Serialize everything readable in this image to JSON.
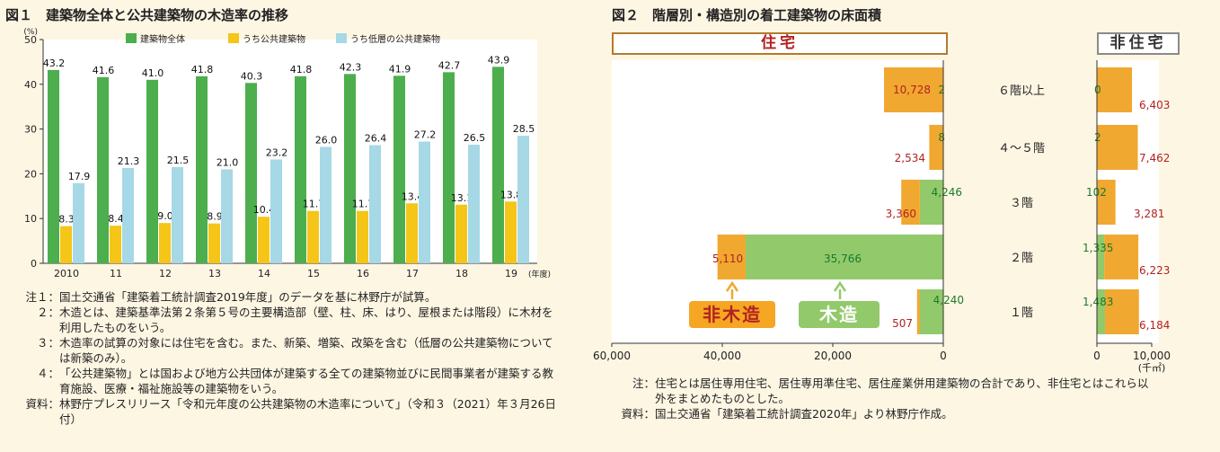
{
  "fig1": {
    "title": "図１　建築物全体と公共建築物の木造率の推移",
    "notes": [
      {
        "label": "注１：",
        "text": "国土交通省「建築着工統計調査2019年度」のデータを基に林野庁が試算。"
      },
      {
        "label": "２：",
        "text": "木造とは、建築基準法第２条第５号の主要構造部（壁、柱、床、はり、屋根または階段）に木材を利用したものをいう。"
      },
      {
        "label": "３：",
        "text": "木造率の試算の対象には住宅を含む。また、新築、増築、改築を含む（低層の公共建築物については新築のみ）。"
      },
      {
        "label": "４：",
        "text": "「公共建築物」とは国および地方公共団体が建築する全ての建築物並びに民間事業者が建築する教育施設、医療・福祉施設等の建築物をいう。"
      },
      {
        "label": "資料：",
        "text": "林野庁プレスリリース「令和元年度の公共建築物の木造率について」（令和３（2021）年３月26日付）"
      }
    ]
  },
  "fig2": {
    "title": "図２　階層別・構造別の着工建築物の床面積",
    "housing_label": "住宅",
    "nonhousing_label": "非住宅",
    "nonwood_label": "非木造",
    "wood_label": "木造",
    "notes": [
      {
        "label": "注：",
        "text": "住宅とは居住専用住宅、居住専用準住宅、居住産業併用建築物の合計であり、非住宅とはこれら以外をまとめたものとした。"
      },
      {
        "label": "資料：",
        "text": "国土交通省「建築着工統計調査2020年」より林野庁作成。"
      }
    ]
  },
  "chart_data": [
    {
      "type": "bar",
      "title": "建築物全体と公共建築物の木造率の推移",
      "ylabel": "(%)",
      "xlabel": "(年度)",
      "ylim": [
        0,
        50
      ],
      "yticks": [
        0,
        10,
        20,
        30,
        40,
        50
      ],
      "categories": [
        "2010",
        "11",
        "12",
        "13",
        "14",
        "15",
        "16",
        "17",
        "18",
        "19"
      ],
      "grid": false,
      "legend": "top",
      "series": [
        {
          "name": "建築物全体",
          "color": "#4cae4c",
          "values": [
            43.2,
            41.6,
            41.0,
            41.8,
            40.3,
            41.8,
            42.3,
            41.9,
            42.7,
            43.9
          ]
        },
        {
          "name": "うち公共建築物",
          "color": "#f5c518",
          "values": [
            8.3,
            8.4,
            9.0,
            8.9,
            10.4,
            11.7,
            11.7,
            13.4,
            13.1,
            13.8
          ]
        },
        {
          "name": "うち低層の公共建築物",
          "color": "#a6d8e6",
          "values": [
            17.9,
            21.3,
            21.5,
            21.0,
            23.2,
            26.0,
            26.4,
            27.2,
            26.5,
            28.5
          ]
        }
      ],
      "labels": [
        [
          "43.2",
          "41.6",
          "41.0",
          "41.8",
          "40.3",
          "41.8",
          "42.3",
          "41.9",
          "42.7",
          "43.9"
        ],
        [
          "8.3",
          "8.4",
          "9.0",
          "8.9",
          "10.4",
          "11.7",
          "11.7",
          "13.4",
          "13.1",
          "13.8"
        ],
        [
          "17.9",
          "21.3",
          "21.5",
          "21.0",
          "23.2",
          "26.0",
          "26.4",
          "27.2",
          "26.5",
          "28.5"
        ]
      ]
    },
    {
      "type": "bar",
      "orientation": "horizontal-stacked",
      "title": "階層別・構造別の着工建築物の床面積",
      "unit": "(千㎡)",
      "categories": [
        "６階以上",
        "４～５階",
        "３階",
        "２階",
        "１階"
      ],
      "series_names": [
        "木造",
        "非木造"
      ],
      "colors": {
        "wood": "#92c96b",
        "nonwood": "#f0a830"
      },
      "housing": {
        "xlim": [
          0,
          60000
        ],
        "xticks": [
          "60,000",
          "40,000",
          "20,000",
          "0"
        ],
        "xtick_values": [
          60000,
          40000,
          20000,
          0
        ],
        "wood": [
          2,
          8,
          4246,
          35766,
          4240
        ],
        "nonwood": [
          10728,
          2534,
          3360,
          5110,
          507
        ],
        "wood_labels": [
          "2",
          "8",
          "4,246",
          "35,766",
          "4,240"
        ],
        "nonwood_labels": [
          "10,728",
          "2,534",
          "3,360",
          "5,110",
          "507"
        ]
      },
      "nonhousing": {
        "xlim": [
          0,
          10000
        ],
        "xticks": [
          "0",
          "10,000"
        ],
        "xtick_values": [
          0,
          10000
        ],
        "wood": [
          0,
          2,
          102,
          1335,
          1483
        ],
        "nonwood": [
          6403,
          7462,
          3281,
          6223,
          6184
        ],
        "wood_labels": [
          "0",
          "2",
          "102",
          "1,335",
          "1,483"
        ],
        "nonwood_labels": [
          "6,403",
          "7,462",
          "3,281",
          "6,223",
          "6,184"
        ]
      }
    }
  ]
}
